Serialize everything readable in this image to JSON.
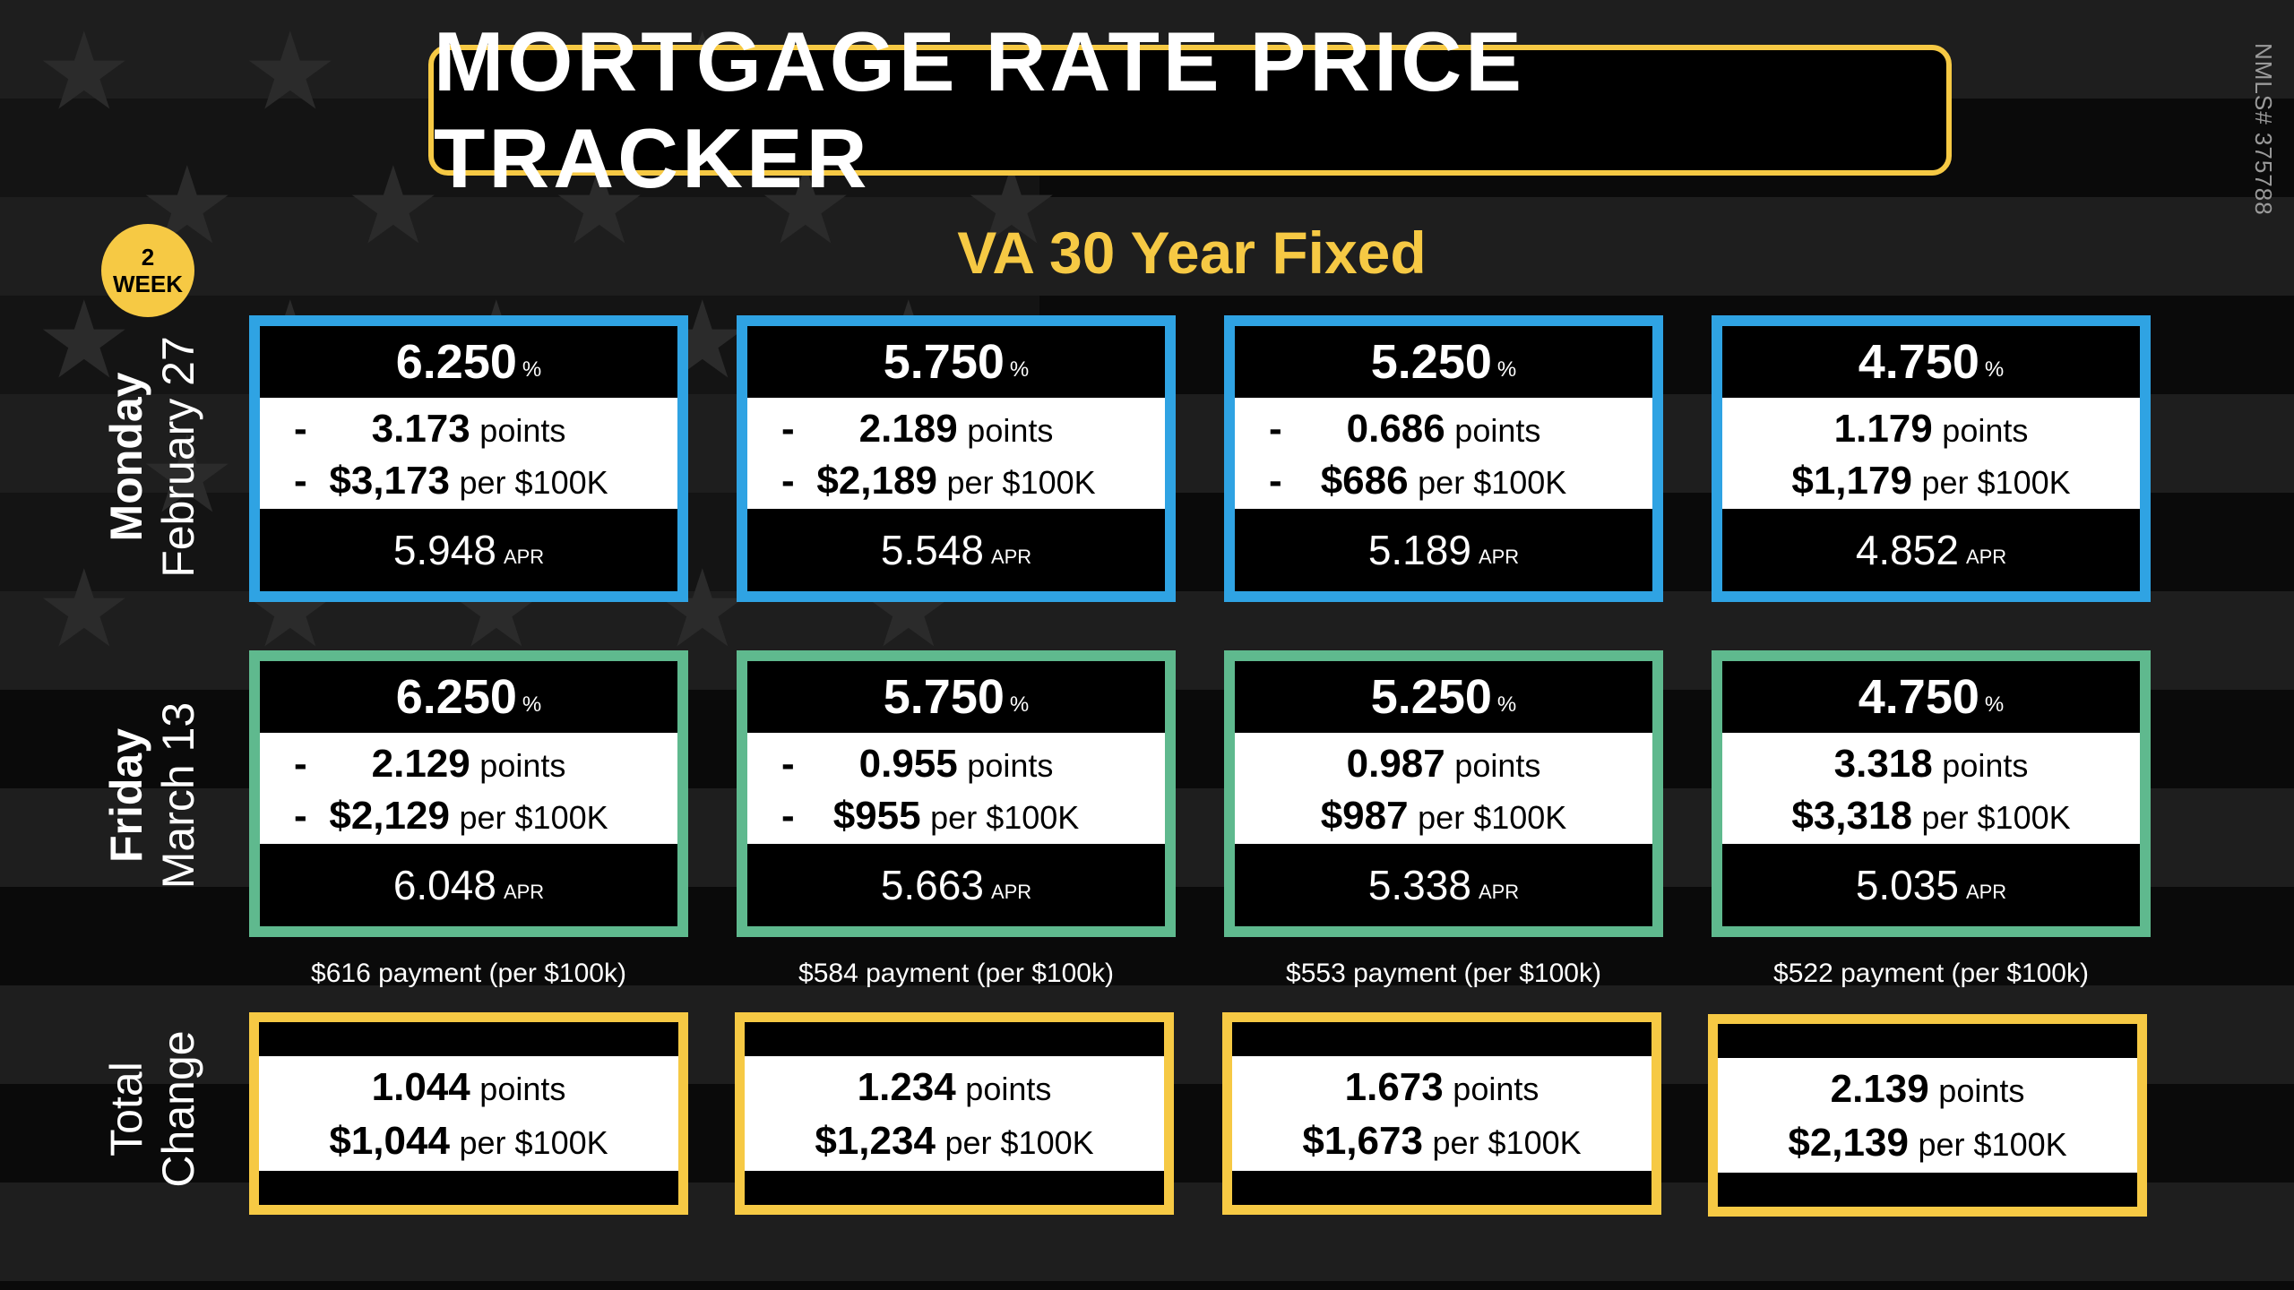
{
  "title": "MORTGAGE RATE PRICE TRACKER",
  "subtitle": "VA 30 Year Fixed",
  "badge": {
    "top": "2",
    "bottom": "WEEK"
  },
  "nmls": "NMLS# 375788",
  "colors": {
    "accent_yellow": "#f6c944",
    "row1_blue": "#2fa3e3",
    "row2_green": "#5fb98e",
    "background": "#0a0a0a"
  },
  "row_labels": [
    {
      "day": "Monday",
      "date": "February 27"
    },
    {
      "day": "Friday",
      "date": "March 13"
    },
    {
      "day": "Total",
      "date": "Change"
    }
  ],
  "row1": [
    {
      "rate": "6.250",
      "unit": "%",
      "dash": "-",
      "points": "3.173",
      "points_label": "points",
      "dollars": "$3,173",
      "dollars_label": "per $100K",
      "apr": "5.948",
      "apr_label": "APR"
    },
    {
      "rate": "5.750",
      "unit": "%",
      "dash": "-",
      "points": "2.189",
      "points_label": "points",
      "dollars": "$2,189",
      "dollars_label": "per $100K",
      "apr": "5.548",
      "apr_label": "APR"
    },
    {
      "rate": "5.250",
      "unit": "%",
      "dash": "-",
      "points": "0.686",
      "points_label": "points",
      "dollars": "$686",
      "dollars_label": "per $100K",
      "apr": "5.189",
      "apr_label": "APR"
    },
    {
      "rate": "4.750",
      "unit": "%",
      "dash": "",
      "points": "1.179",
      "points_label": "points",
      "dollars": "$1,179",
      "dollars_label": "per $100K",
      "apr": "4.852",
      "apr_label": "APR"
    }
  ],
  "row2": [
    {
      "rate": "6.250",
      "unit": "%",
      "dash": "-",
      "points": "2.129",
      "points_label": "points",
      "dollars": "$2,129",
      "dollars_label": "per $100K",
      "apr": "6.048",
      "apr_label": "APR"
    },
    {
      "rate": "5.750",
      "unit": "%",
      "dash": "-",
      "points": "0.955",
      "points_label": "points",
      "dollars": "$955",
      "dollars_label": "per $100K",
      "apr": "5.663",
      "apr_label": "APR"
    },
    {
      "rate": "5.250",
      "unit": "%",
      "dash": "",
      "points": "0.987",
      "points_label": "points",
      "dollars": "$987",
      "dollars_label": "per $100K",
      "apr": "5.338",
      "apr_label": "APR"
    },
    {
      "rate": "4.750",
      "unit": "%",
      "dash": "",
      "points": "3.318",
      "points_label": "points",
      "dollars": "$3,318",
      "dollars_label": "per $100K",
      "apr": "5.035",
      "apr_label": "APR"
    }
  ],
  "payments": [
    "$616 payment (per $100k)",
    "$584 payment (per $100k)",
    "$553 payment (per $100k)",
    "$522 payment (per $100k)"
  ],
  "totals": [
    {
      "points": "1.044",
      "points_label": "points",
      "dollars": "$1,044",
      "dollars_label": "per $100K"
    },
    {
      "points": "1.234",
      "points_label": "points",
      "dollars": "$1,234",
      "dollars_label": "per $100K"
    },
    {
      "points": "1.673",
      "points_label": "points",
      "dollars": "$1,673",
      "dollars_label": "per $100K"
    },
    {
      "points": "2.139",
      "points_label": "points",
      "dollars": "$2,139",
      "dollars_label": "per $100K"
    }
  ]
}
